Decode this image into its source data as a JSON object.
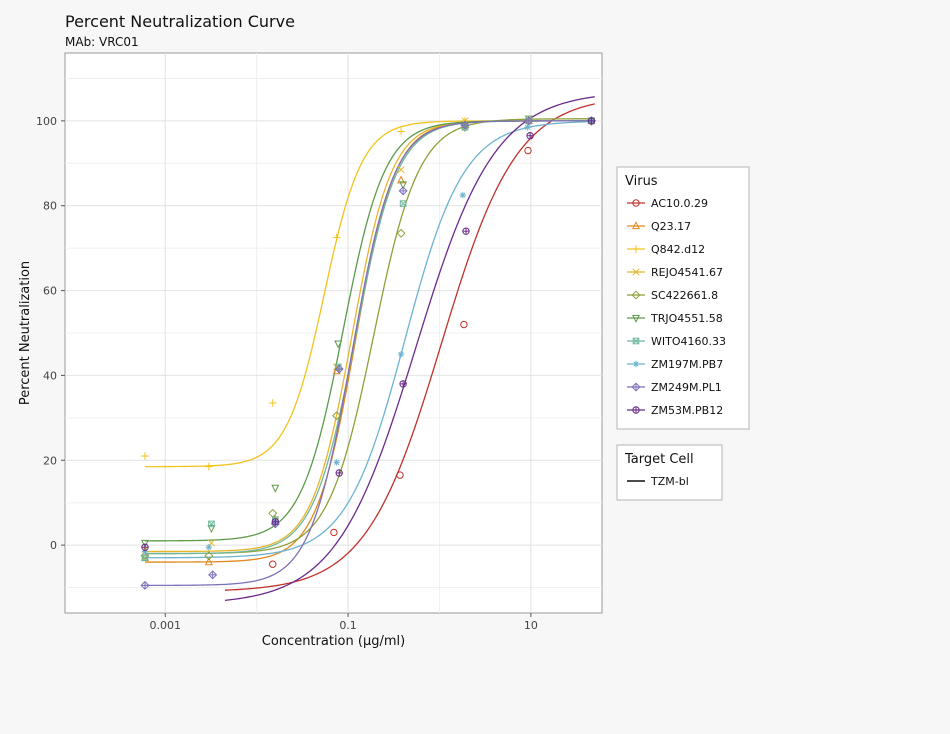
{
  "chart_data": {
    "type": "line",
    "title": "Percent Neutralization Curve",
    "subtitle": "MAb: VRC01",
    "xlabel": "Concentration (µg/ml)",
    "ylabel": "Percent Neutralization",
    "x_scale": "log10",
    "xlim": [
      8e-05,
      60
    ],
    "ylim": [
      -16,
      116
    ],
    "x_ticks": [
      0.001,
      0.1,
      10
    ],
    "x_tick_labels": [
      "0.001",
      "0.1",
      "10"
    ],
    "y_ticks": [
      0,
      20,
      40,
      60,
      80,
      100
    ],
    "y_tick_labels": [
      "0",
      "20",
      "40",
      "60",
      "80",
      "100"
    ],
    "grid": true,
    "legend_placement": "right",
    "legend_title": "Virus",
    "legend2_title": "Target Cell",
    "legend2_items": [
      {
        "label": "TZM-bl",
        "color": "#111111"
      }
    ],
    "series": [
      {
        "name": "AC10.0.29",
        "color": "#c0312b",
        "marker": "circle",
        "curve": {
          "bottom": -11,
          "top": 106,
          "ec50": 1.05,
          "hill": 1.05,
          "x_from": 0.0045,
          "x_to": 50
        },
        "points": [
          [
            0.015,
            -4.5
          ],
          [
            0.07,
            3
          ],
          [
            0.37,
            16.5
          ],
          [
            1.85,
            52
          ],
          [
            9.3,
            93
          ],
          [
            46,
            100
          ]
        ]
      },
      {
        "name": "Q23.17",
        "color": "#e08a1e",
        "marker": "triangle",
        "curve": {
          "bottom": -4,
          "top": 100,
          "ec50": 0.12,
          "hill": 2.0,
          "x_from": 0.0006,
          "x_to": 50
        },
        "points": [
          [
            0.0006,
            -3
          ],
          [
            0.003,
            -4
          ],
          [
            0.016,
            6
          ],
          [
            0.075,
            41
          ],
          [
            0.38,
            86
          ],
          [
            1.9,
            99
          ],
          [
            9.5,
            100
          ],
          [
            46,
            100
          ]
        ]
      },
      {
        "name": "Q842.d12",
        "color": "#f2c31a",
        "marker": "plus",
        "curve": {
          "bottom": 18.5,
          "top": 100,
          "ec50": 0.055,
          "hill": 2.1,
          "x_from": 0.0006,
          "x_to": 50
        },
        "points": [
          [
            0.0006,
            21
          ],
          [
            0.003,
            18.5
          ],
          [
            0.015,
            33.5
          ],
          [
            0.075,
            72.5
          ],
          [
            0.38,
            97.5
          ],
          [
            1.9,
            100
          ],
          [
            9.5,
            100
          ],
          [
            46,
            100
          ]
        ]
      },
      {
        "name": "REJO4541.67",
        "color": "#e8b52a",
        "marker": "x",
        "curve": {
          "bottom": -1.5,
          "top": 100,
          "ec50": 0.11,
          "hill": 2.0,
          "x_from": 0.0006,
          "x_to": 50
        },
        "points": [
          [
            0.0006,
            -1
          ],
          [
            0.0032,
            0.5
          ],
          [
            0.016,
            6
          ],
          [
            0.075,
            42
          ],
          [
            0.38,
            88.5
          ],
          [
            1.9,
            100
          ],
          [
            9.5,
            100
          ],
          [
            46,
            100
          ]
        ]
      },
      {
        "name": "SC422661.8",
        "color": "#8fa03a",
        "marker": "diamond",
        "curve": {
          "bottom": -2,
          "top": 100.5,
          "ec50": 0.19,
          "hill": 1.75,
          "x_from": 0.0006,
          "x_to": 50
        },
        "points": [
          [
            0.0006,
            -2.5
          ],
          [
            0.003,
            -2.5
          ],
          [
            0.015,
            7.5
          ],
          [
            0.075,
            30.5
          ],
          [
            0.38,
            73.5
          ],
          [
            1.9,
            98.5
          ],
          [
            9.5,
            100
          ],
          [
            46,
            100
          ]
        ]
      },
      {
        "name": "TRJO4551.58",
        "color": "#5c9a4a",
        "marker": "triangle-down",
        "curve": {
          "bottom": 1,
          "top": 100,
          "ec50": 0.088,
          "hill": 1.9,
          "x_from": 0.0006,
          "x_to": 50
        },
        "points": [
          [
            0.0006,
            0.5
          ],
          [
            0.0032,
            4
          ],
          [
            0.016,
            13.5
          ],
          [
            0.078,
            47.5
          ],
          [
            0.4,
            85
          ],
          [
            1.9,
            99
          ],
          [
            9.5,
            100.5
          ],
          [
            46,
            100
          ]
        ]
      },
      {
        "name": "WITO4160.33",
        "color": "#6fb89e",
        "marker": "square",
        "curve": {
          "bottom": -2,
          "top": 100,
          "ec50": 0.12,
          "hill": 1.9,
          "x_from": 0.0006,
          "x_to": 50
        },
        "points": [
          [
            0.0006,
            -3
          ],
          [
            0.0032,
            5
          ],
          [
            0.016,
            6
          ],
          [
            0.078,
            42
          ],
          [
            0.4,
            80.5
          ],
          [
            1.9,
            98.5
          ],
          [
            9.5,
            100
          ],
          [
            46,
            100
          ]
        ]
      },
      {
        "name": "ZM197M.PB7",
        "color": "#6cb3d0",
        "marker": "asterisk",
        "curve": {
          "bottom": -3,
          "top": 100,
          "ec50": 0.42,
          "hill": 1.35,
          "x_from": 0.0006,
          "x_to": 50
        },
        "points": [
          [
            0.0006,
            -1.5
          ],
          [
            0.003,
            -0.5
          ],
          [
            0.016,
            5.5
          ],
          [
            0.075,
            19.5
          ],
          [
            0.38,
            45
          ],
          [
            1.8,
            82.5
          ],
          [
            9.2,
            98.5
          ],
          [
            46,
            100
          ]
        ]
      },
      {
        "name": "ZM249M.PL1",
        "color": "#7f6fb8",
        "marker": "diamond-plus",
        "curve": {
          "bottom": -9.5,
          "top": 100,
          "ec50": 0.11,
          "hill": 1.9,
          "x_from": 0.0006,
          "x_to": 50
        },
        "points": [
          [
            0.0006,
            -9.5
          ],
          [
            0.0033,
            -7
          ],
          [
            0.016,
            5
          ],
          [
            0.08,
            41.5
          ],
          [
            0.4,
            83.5
          ],
          [
            1.9,
            99
          ],
          [
            9.5,
            100
          ],
          [
            46,
            100
          ]
        ]
      },
      {
        "name": "ZM53M.PB12",
        "color": "#6a2a8a",
        "marker": "circle-plus",
        "curve": {
          "bottom": -14,
          "top": 107,
          "ec50": 0.55,
          "hill": 1.0,
          "x_from": 0.0045,
          "x_to": 50
        },
        "points": [
          [
            0.0006,
            -0.5
          ],
          [
            0.016,
            5.5
          ],
          [
            0.08,
            17
          ],
          [
            0.4,
            38
          ],
          [
            1.95,
            74
          ],
          [
            9.8,
            96.5
          ],
          [
            46,
            100
          ]
        ]
      }
    ]
  }
}
